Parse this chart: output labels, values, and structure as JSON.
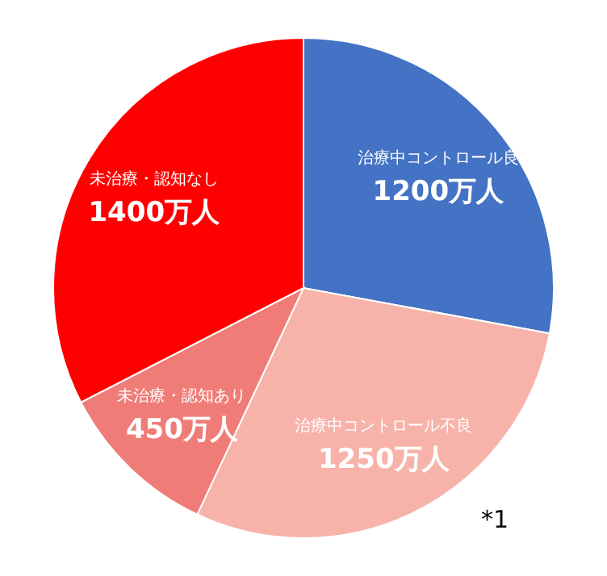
{
  "chart_data": {
    "type": "pie",
    "categories": [
      "治療中コントロール良",
      "治療中コントロール不良",
      "未治療・認知あり",
      "未治療・認知なし"
    ],
    "values": [
      1200,
      1250,
      450,
      1400
    ],
    "value_labels": [
      "1200万人",
      "1250万人",
      "450万人",
      "1400万人"
    ],
    "colors": [
      "#4472c4",
      "#f7b3aa",
      "#f07c78",
      "#ff0000"
    ],
    "annotations": [
      "*1"
    ]
  }
}
